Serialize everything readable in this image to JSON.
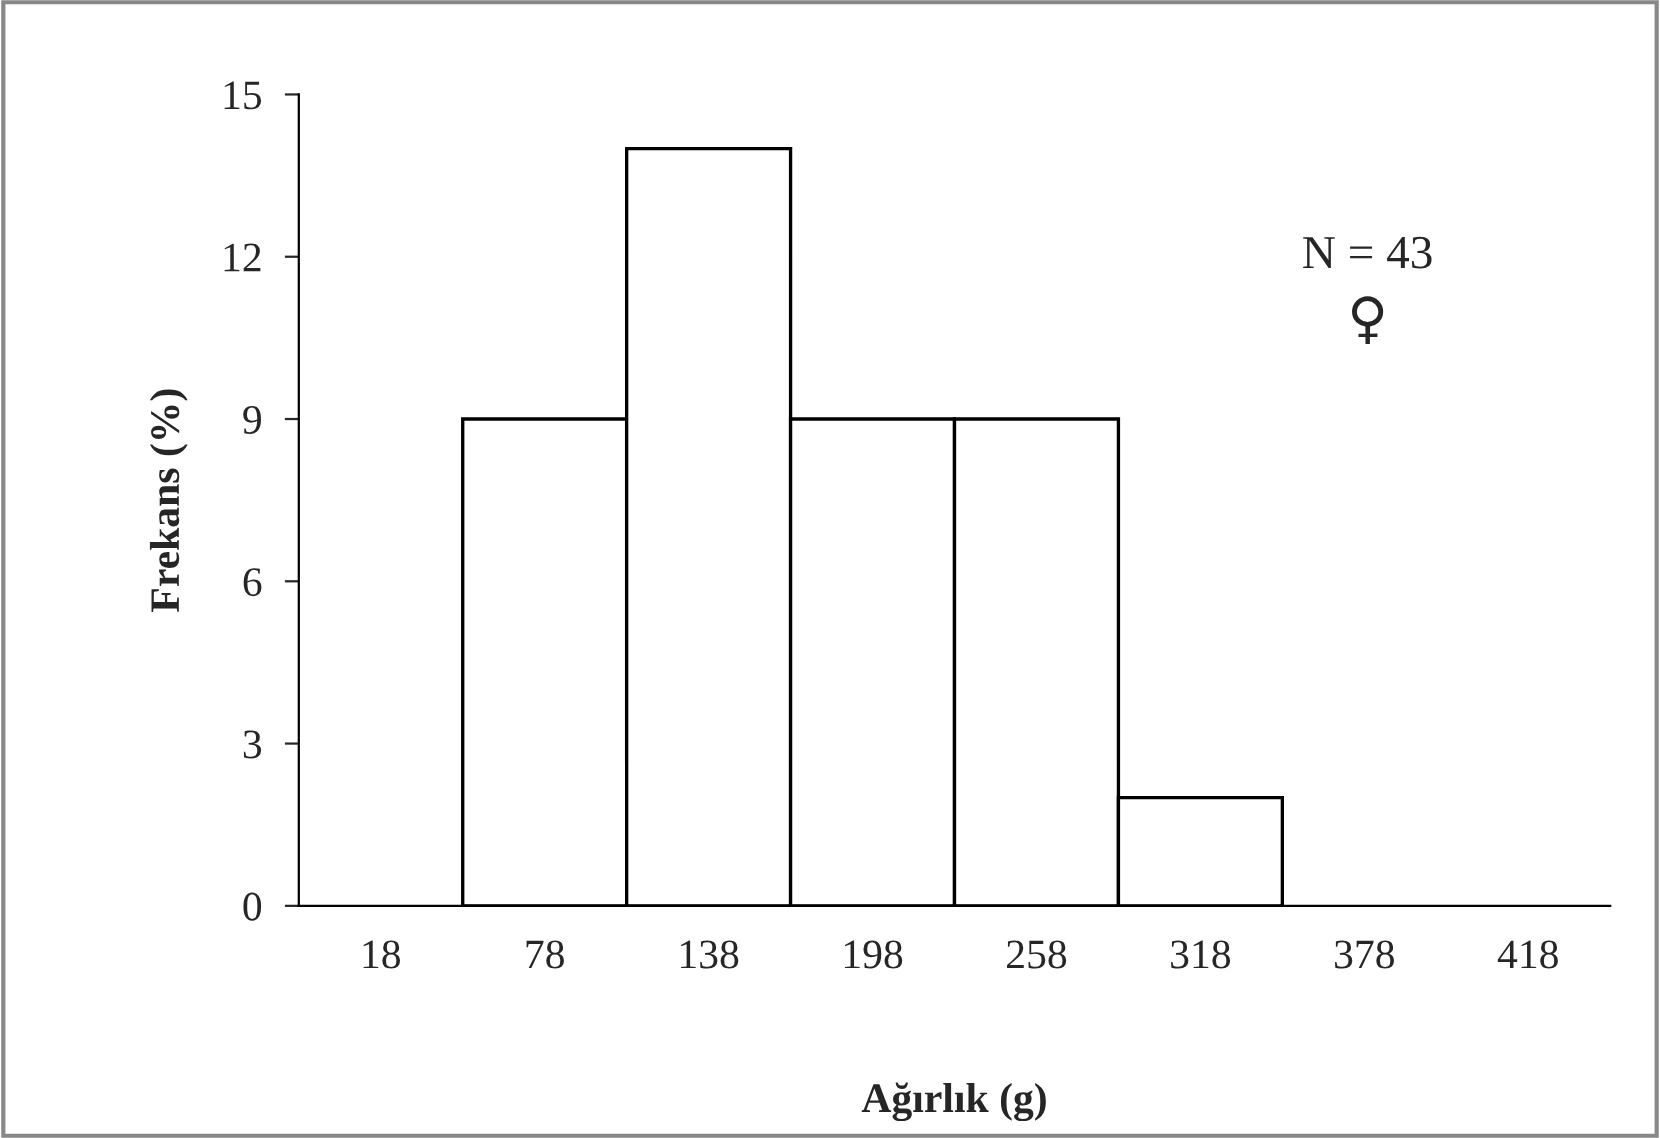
{
  "chart_data": {
    "type": "bar",
    "xlabel": "Ağırlık (g)",
    "ylabel": "Frekans (%)",
    "categories": [
      "18",
      "78",
      "138",
      "198",
      "258",
      "318",
      "378",
      "418"
    ],
    "values": [
      0,
      9,
      14,
      9,
      9,
      2,
      0,
      0
    ],
    "color": "#ffffff",
    "ylim": [
      0,
      15
    ],
    "yticks": [
      0,
      3,
      6,
      9,
      12,
      15
    ],
    "grid": false,
    "legend": false,
    "annotations": [
      "N = 43",
      "♀"
    ]
  }
}
